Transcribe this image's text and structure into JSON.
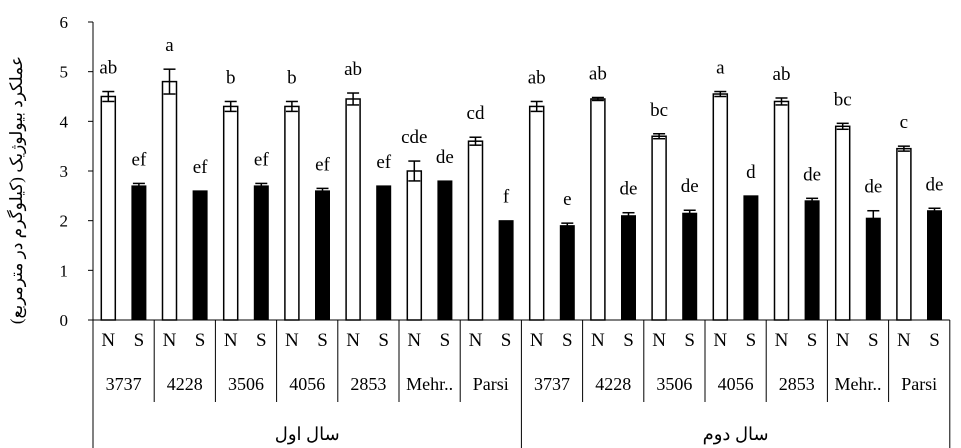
{
  "chart_data": {
    "type": "bar",
    "title": "",
    "ylabel": "عملکرد بیولوژیک (کیلوگرم در مترمربع)",
    "ylim": [
      0,
      6
    ],
    "yticks": [
      "0",
      "1",
      "2",
      "3",
      "4",
      "5",
      "6"
    ],
    "grid": false,
    "colors": {
      "N": "#ffffff",
      "S": "#000000",
      "edge": "#000000"
    },
    "groups": [
      {
        "name": "سال اول",
        "genotypes": [
          "3737",
          "4228",
          "3506",
          "4056",
          "2853",
          "Mehr..",
          "Parsi"
        ],
        "treatments": [
          "N",
          "S"
        ],
        "bars": [
          {
            "genotype": "3737",
            "treatment": "N",
            "value": 4.5,
            "error": 0.1,
            "letter": "ab"
          },
          {
            "genotype": "3737",
            "treatment": "S",
            "value": 2.7,
            "error": 0.05,
            "letter": "ef"
          },
          {
            "genotype": "4228",
            "treatment": "N",
            "value": 4.8,
            "error": 0.25,
            "letter": "a"
          },
          {
            "genotype": "4228",
            "treatment": "S",
            "value": 2.6,
            "error": 0.0,
            "letter": "ef"
          },
          {
            "genotype": "3506",
            "treatment": "N",
            "value": 4.3,
            "error": 0.1,
            "letter": "b"
          },
          {
            "genotype": "3506",
            "treatment": "S",
            "value": 2.7,
            "error": 0.05,
            "letter": "ef"
          },
          {
            "genotype": "4056",
            "treatment": "N",
            "value": 4.3,
            "error": 0.1,
            "letter": "b"
          },
          {
            "genotype": "4056",
            "treatment": "S",
            "value": 2.6,
            "error": 0.05,
            "letter": "ef"
          },
          {
            "genotype": "2853",
            "treatment": "N",
            "value": 4.45,
            "error": 0.12,
            "letter": "ab"
          },
          {
            "genotype": "2853",
            "treatment": "S",
            "value": 2.7,
            "error": 0.0,
            "letter": "ef"
          },
          {
            "genotype": "Mehr..",
            "treatment": "N",
            "value": 3.0,
            "error": 0.2,
            "letter": "cde"
          },
          {
            "genotype": "Mehr..",
            "treatment": "S",
            "value": 2.8,
            "error": 0.0,
            "letter": "de"
          },
          {
            "genotype": "Parsi",
            "treatment": "N",
            "value": 3.6,
            "error": 0.08,
            "letter": "cd"
          },
          {
            "genotype": "Parsi",
            "treatment": "S",
            "value": 2.0,
            "error": 0.0,
            "letter": "f"
          }
        ]
      },
      {
        "name": "سال دوم",
        "genotypes": [
          "3737",
          "4228",
          "3506",
          "4056",
          "2853",
          "Mehr..",
          "Parsi"
        ],
        "treatments": [
          "N",
          "S"
        ],
        "bars": [
          {
            "genotype": "3737",
            "treatment": "N",
            "value": 4.3,
            "error": 0.1,
            "letter": "ab"
          },
          {
            "genotype": "3737",
            "treatment": "S",
            "value": 1.9,
            "error": 0.05,
            "letter": "e"
          },
          {
            "genotype": "4228",
            "treatment": "N",
            "value": 4.45,
            "error": 0.03,
            "letter": "ab"
          },
          {
            "genotype": "4228",
            "treatment": "S",
            "value": 2.1,
            "error": 0.06,
            "letter": "de"
          },
          {
            "genotype": "3506",
            "treatment": "N",
            "value": 3.7,
            "error": 0.05,
            "letter": "bc"
          },
          {
            "genotype": "3506",
            "treatment": "S",
            "value": 2.15,
            "error": 0.06,
            "letter": "de"
          },
          {
            "genotype": "4056",
            "treatment": "N",
            "value": 4.55,
            "error": 0.05,
            "letter": "a"
          },
          {
            "genotype": "4056",
            "treatment": "S",
            "value": 2.5,
            "error": 0.0,
            "letter": "d"
          },
          {
            "genotype": "2853",
            "treatment": "N",
            "value": 4.4,
            "error": 0.07,
            "letter": "ab"
          },
          {
            "genotype": "2853",
            "treatment": "S",
            "value": 2.4,
            "error": 0.05,
            "letter": "de"
          },
          {
            "genotype": "Mehr..",
            "treatment": "N",
            "value": 3.9,
            "error": 0.06,
            "letter": "bc"
          },
          {
            "genotype": "Mehr..",
            "treatment": "S",
            "value": 2.05,
            "error": 0.15,
            "letter": "de"
          },
          {
            "genotype": "Parsi",
            "treatment": "N",
            "value": 3.45,
            "error": 0.05,
            "letter": "c"
          },
          {
            "genotype": "Parsi",
            "treatment": "S",
            "value": 2.2,
            "error": 0.05,
            "letter": "de"
          }
        ]
      }
    ]
  }
}
